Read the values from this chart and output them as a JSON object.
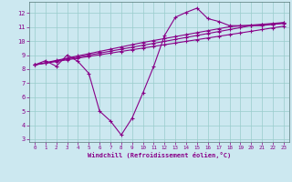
{
  "xlabel": "Windchill (Refroidissement éolien,°C)",
  "background_color": "#cce8f0",
  "grid_color": "#99cccc",
  "line_color": "#880088",
  "xlim": [
    -0.5,
    23.5
  ],
  "ylim": [
    2.8,
    12.8
  ],
  "xticks": [
    0,
    1,
    2,
    3,
    4,
    5,
    6,
    7,
    8,
    9,
    10,
    11,
    12,
    13,
    14,
    15,
    16,
    17,
    18,
    19,
    20,
    21,
    22,
    23
  ],
  "yticks": [
    3,
    4,
    5,
    6,
    7,
    8,
    9,
    10,
    11,
    12
  ],
  "zigzag_x": [
    0,
    1,
    2,
    3,
    4,
    5,
    6,
    7,
    8,
    9,
    10,
    11,
    12,
    13,
    14,
    15,
    16,
    17,
    18,
    19,
    20,
    21,
    22,
    23
  ],
  "zigzag_y": [
    8.3,
    8.6,
    8.2,
    9.0,
    8.55,
    7.7,
    5.0,
    4.3,
    3.3,
    4.5,
    6.3,
    8.2,
    10.4,
    11.7,
    12.05,
    12.35,
    11.6,
    11.4,
    11.1,
    11.1,
    11.1,
    11.1,
    11.2,
    11.3
  ],
  "line2_x": [
    0,
    1,
    2,
    3,
    4,
    5,
    6,
    7,
    8,
    9,
    10,
    11,
    12,
    13,
    14,
    15,
    16,
    17,
    18,
    19,
    20,
    21,
    22,
    23
  ],
  "line2_y": [
    8.3,
    8.42,
    8.54,
    8.66,
    8.78,
    8.9,
    9.02,
    9.14,
    9.26,
    9.38,
    9.5,
    9.62,
    9.74,
    9.86,
    9.98,
    10.1,
    10.22,
    10.34,
    10.46,
    10.58,
    10.7,
    10.82,
    10.94,
    11.06
  ],
  "line3_x": [
    0,
    1,
    2,
    3,
    4,
    5,
    6,
    7,
    8,
    9,
    10,
    11,
    12,
    13,
    14,
    15,
    16,
    17,
    18,
    19,
    20,
    21,
    22,
    23
  ],
  "line3_y": [
    8.3,
    8.44,
    8.58,
    8.72,
    8.86,
    9.0,
    9.14,
    9.28,
    9.42,
    9.56,
    9.7,
    9.84,
    9.98,
    10.12,
    10.26,
    10.4,
    10.54,
    10.68,
    10.82,
    10.96,
    11.1,
    11.15,
    11.2,
    11.25
  ],
  "line4_x": [
    0,
    1,
    2,
    3,
    4,
    5,
    6,
    7,
    8,
    9,
    10,
    11,
    12,
    13,
    14,
    15,
    16,
    17,
    18,
    19,
    20,
    21,
    22,
    23
  ],
  "line4_y": [
    8.3,
    8.46,
    8.62,
    8.78,
    8.94,
    9.1,
    9.26,
    9.42,
    9.58,
    9.74,
    9.9,
    10.04,
    10.18,
    10.32,
    10.46,
    10.6,
    10.74,
    10.88,
    11.02,
    11.08,
    11.14,
    11.2,
    11.26,
    11.32
  ]
}
